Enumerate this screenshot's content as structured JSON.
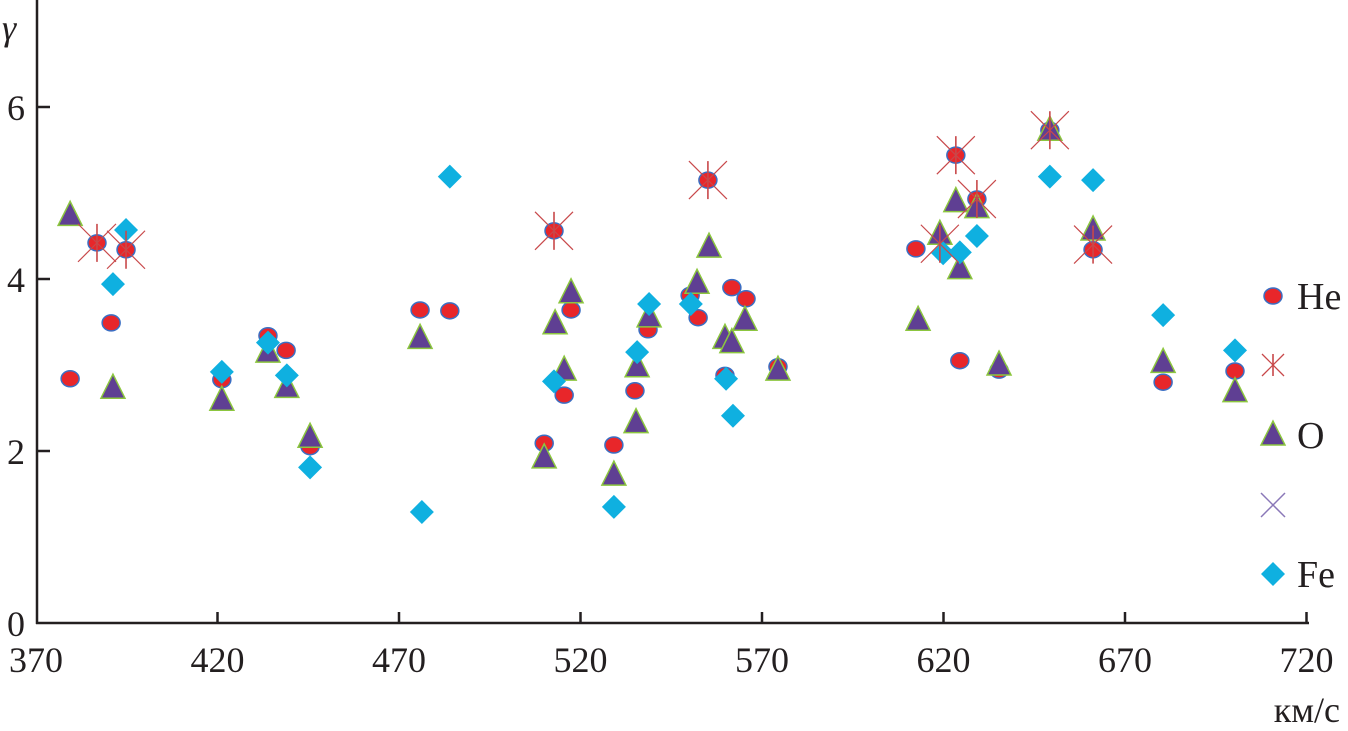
{
  "chart_data": {
    "type": "scatter",
    "title": "",
    "xlabel": "км/с",
    "ylabel": "γ",
    "xlim": [
      370,
      720
    ],
    "ylim": [
      0,
      7.2
    ],
    "xticks": [
      370,
      420,
      470,
      520,
      570,
      620,
      670,
      720
    ],
    "yticks": [
      0,
      2,
      4,
      6
    ],
    "grid": false,
    "legend_position": "right",
    "series": [
      {
        "name": "He",
        "marker": "circle",
        "color": "#e8262a",
        "edge": "#3a6fc4",
        "points": [
          [
            379.4,
            2.84
          ],
          [
            386.8,
            4.42
          ],
          [
            390.7,
            3.49
          ],
          [
            394.8,
            4.34
          ],
          [
            421.2,
            2.83
          ],
          [
            433.9,
            3.34
          ],
          [
            438.9,
            3.17
          ],
          [
            445.5,
            2.05
          ],
          [
            475.8,
            3.64
          ],
          [
            484.0,
            3.63
          ],
          [
            510.0,
            2.09
          ],
          [
            512.7,
            4.56
          ],
          [
            515.5,
            2.65
          ],
          [
            517.4,
            3.64
          ],
          [
            529.2,
            2.07
          ],
          [
            535.0,
            2.7
          ],
          [
            538.6,
            3.41
          ],
          [
            550.2,
            3.81
          ],
          [
            552.4,
            3.55
          ],
          [
            555.1,
            5.15
          ],
          [
            559.8,
            2.88
          ],
          [
            561.7,
            3.9
          ],
          [
            565.6,
            3.77
          ],
          [
            574.4,
            2.98
          ],
          [
            612.4,
            4.35
          ],
          [
            623.4,
            5.44
          ],
          [
            624.5,
            3.05
          ],
          [
            629.2,
            4.93
          ],
          [
            635.3,
            2.94
          ],
          [
            649.3,
            5.73
          ],
          [
            661.2,
            4.34
          ],
          [
            680.5,
            2.8
          ],
          [
            700.3,
            2.93
          ]
        ]
      },
      {
        "name": "",
        "marker": "asterisk",
        "color": "#c8484a",
        "points": [
          [
            386.8,
            4.42
          ],
          [
            394.8,
            4.34
          ],
          [
            512.7,
            4.56
          ],
          [
            555.1,
            5.15
          ],
          [
            619.0,
            4.41
          ],
          [
            623.4,
            5.44
          ],
          [
            629.2,
            4.93
          ],
          [
            649.3,
            5.73
          ],
          [
            661.2,
            4.4
          ]
        ]
      },
      {
        "name": "O",
        "marker": "triangle",
        "color": "#5f3f93",
        "edge": "#8cc63f",
        "points": [
          [
            379.4,
            4.74
          ],
          [
            391.2,
            2.73
          ],
          [
            421.2,
            2.59
          ],
          [
            433.9,
            3.15
          ],
          [
            439.1,
            2.74
          ],
          [
            445.5,
            2.16
          ],
          [
            475.8,
            3.31
          ],
          [
            510.0,
            1.92
          ],
          [
            513.0,
            3.48
          ],
          [
            515.5,
            2.94
          ],
          [
            517.4,
            3.84
          ],
          [
            529.2,
            1.72
          ],
          [
            535.3,
            2.33
          ],
          [
            535.6,
            2.98
          ],
          [
            538.9,
            3.56
          ],
          [
            552.1,
            3.95
          ],
          [
            555.4,
            4.37
          ],
          [
            559.8,
            3.31
          ],
          [
            561.7,
            3.26
          ],
          [
            565.3,
            3.52
          ],
          [
            574.4,
            2.94
          ],
          [
            613.0,
            3.52
          ],
          [
            619.0,
            4.52
          ],
          [
            623.4,
            4.9
          ],
          [
            624.5,
            4.12
          ],
          [
            629.2,
            4.83
          ],
          [
            635.3,
            3.0
          ],
          [
            649.3,
            5.73
          ],
          [
            661.2,
            4.57
          ],
          [
            680.5,
            3.03
          ],
          [
            700.3,
            2.69
          ]
        ]
      },
      {
        "name": "",
        "marker": "x",
        "color": "#8a78b8",
        "points": []
      },
      {
        "name": "Fe",
        "marker": "diamond",
        "color": "#0fb0e0",
        "points": [
          [
            394.8,
            4.57
          ],
          [
            391.2,
            3.94
          ],
          [
            421.2,
            2.92
          ],
          [
            433.9,
            3.26
          ],
          [
            439.1,
            2.88
          ],
          [
            445.5,
            1.81
          ],
          [
            476.3,
            1.29
          ],
          [
            484.0,
            5.19
          ],
          [
            512.7,
            2.81
          ],
          [
            529.2,
            1.35
          ],
          [
            535.6,
            3.15
          ],
          [
            538.9,
            3.71
          ],
          [
            550.4,
            3.71
          ],
          [
            560.1,
            2.84
          ],
          [
            562.0,
            2.41
          ],
          [
            619.9,
            4.3
          ],
          [
            624.5,
            4.31
          ],
          [
            629.2,
            4.5
          ],
          [
            649.3,
            5.19
          ],
          [
            661.2,
            5.15
          ],
          [
            680.5,
            3.58
          ],
          [
            700.3,
            3.17
          ]
        ]
      }
    ]
  }
}
